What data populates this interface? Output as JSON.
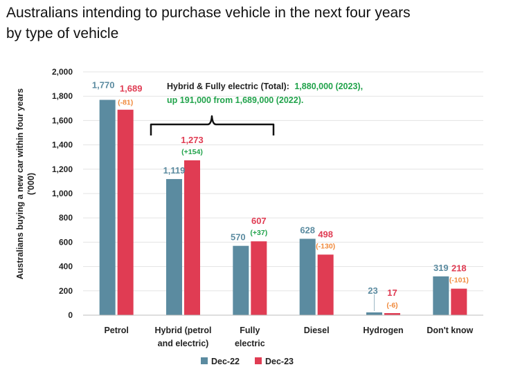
{
  "chart_data": {
    "type": "bar",
    "title_line1": "Australians intending to purchase vehicle in the next four years",
    "title_line2": "by type of vehicle",
    "ylabel_line1": "Australians buying a new car within four years",
    "ylabel_line2": "('000)",
    "xlabel": "",
    "ylim": [
      0,
      2000
    ],
    "yticks": [
      "0",
      "200",
      "400",
      "600",
      "800",
      "1,000",
      "1,200",
      "1,400",
      "1,600",
      "1,800",
      "2,000"
    ],
    "categories": [
      [
        "Petrol"
      ],
      [
        "Hybrid (petrol",
        "and electric)"
      ],
      [
        "Fully",
        "electric"
      ],
      [
        "Diesel"
      ],
      [
        "Hydrogen"
      ],
      [
        "Don't know"
      ]
    ],
    "series": [
      {
        "name": "Dec-22",
        "color": "#5B8BA0",
        "label_color": "#5B8BA0",
        "values": [
          1770,
          1119,
          570,
          628,
          23,
          319
        ],
        "labels": [
          "1,770",
          "1,119",
          "570",
          "628",
          "23",
          "319"
        ]
      },
      {
        "name": "Dec-23",
        "color": "#E03C53",
        "label_color": "#E03C53",
        "values": [
          1689,
          1273,
          607,
          498,
          17,
          218
        ],
        "labels": [
          "1,689",
          "1,273",
          "607",
          "498",
          "17",
          "218"
        ]
      }
    ],
    "changes": [
      {
        "text": "(-81)",
        "color": "#F08A3C"
      },
      {
        "text": "(+154)",
        "color": "#21A34B"
      },
      {
        "text": "(+37)",
        "color": "#21A34B"
      },
      {
        "text": "(-130)",
        "color": "#F08A3C"
      },
      {
        "text": "(-6)",
        "color": "#F08A3C"
      },
      {
        "text": "(-101)",
        "color": "#F08A3C"
      }
    ],
    "annotation": {
      "line1_black": "Hybrid & Fully electric (Total):",
      "line1_green": "1,880,000 (2023),",
      "line2_green": "up 191,000 from 1,689,000 (2022).",
      "green_color": "#21A34B",
      "black_color": "#222222"
    },
    "legend": {
      "position": "bottom-center"
    },
    "grid": true
  }
}
